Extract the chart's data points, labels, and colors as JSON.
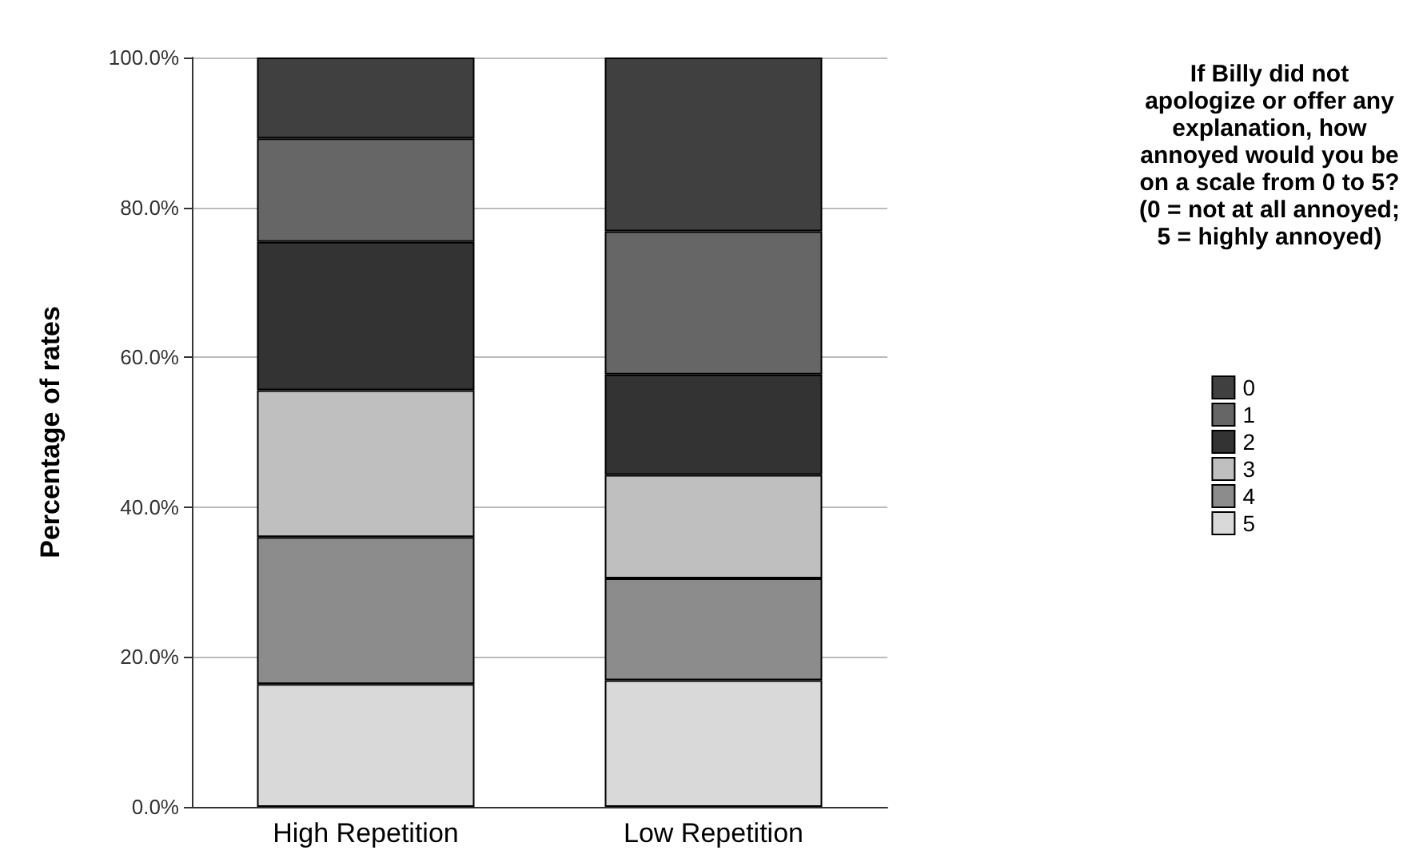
{
  "chart_data": {
    "type": "bar",
    "stacked": true,
    "ylabel": "Percentage of rates",
    "legend_title": "If Billy did not apologize or offer any explanation, how annoyed would you be on a scale from 0 to 5? (0 = not at all annoyed; 5 = highly annoyed)",
    "categories": [
      "High Repetition",
      "Low Repetition"
    ],
    "series": [
      {
        "name": "5",
        "color": "#d9d9d9",
        "values": [
          16.4,
          16.9
        ]
      },
      {
        "name": "4",
        "color": "#8c8c8c",
        "values": [
          19.6,
          13.6
        ]
      },
      {
        "name": "3",
        "color": "#bfbfbf",
        "values": [
          19.6,
          13.8
        ]
      },
      {
        "name": "2",
        "color": "#333333",
        "values": [
          19.8,
          13.4
        ]
      },
      {
        "name": "1",
        "color": "#666666",
        "values": [
          13.8,
          19.1
        ]
      },
      {
        "name": "0",
        "color": "#404040",
        "values": [
          10.8,
          23.2
        ]
      }
    ],
    "ylim": [
      0,
      100
    ],
    "yticks": [
      {
        "value": 0,
        "label": "0.0%"
      },
      {
        "value": 20,
        "label": "20.0%"
      },
      {
        "value": 40,
        "label": "40.0%"
      },
      {
        "value": 60,
        "label": "60.0%"
      },
      {
        "value": 80,
        "label": "80.0%"
      },
      {
        "value": 100,
        "label": "100.0%"
      }
    ],
    "grid": "y",
    "legend": "right"
  }
}
